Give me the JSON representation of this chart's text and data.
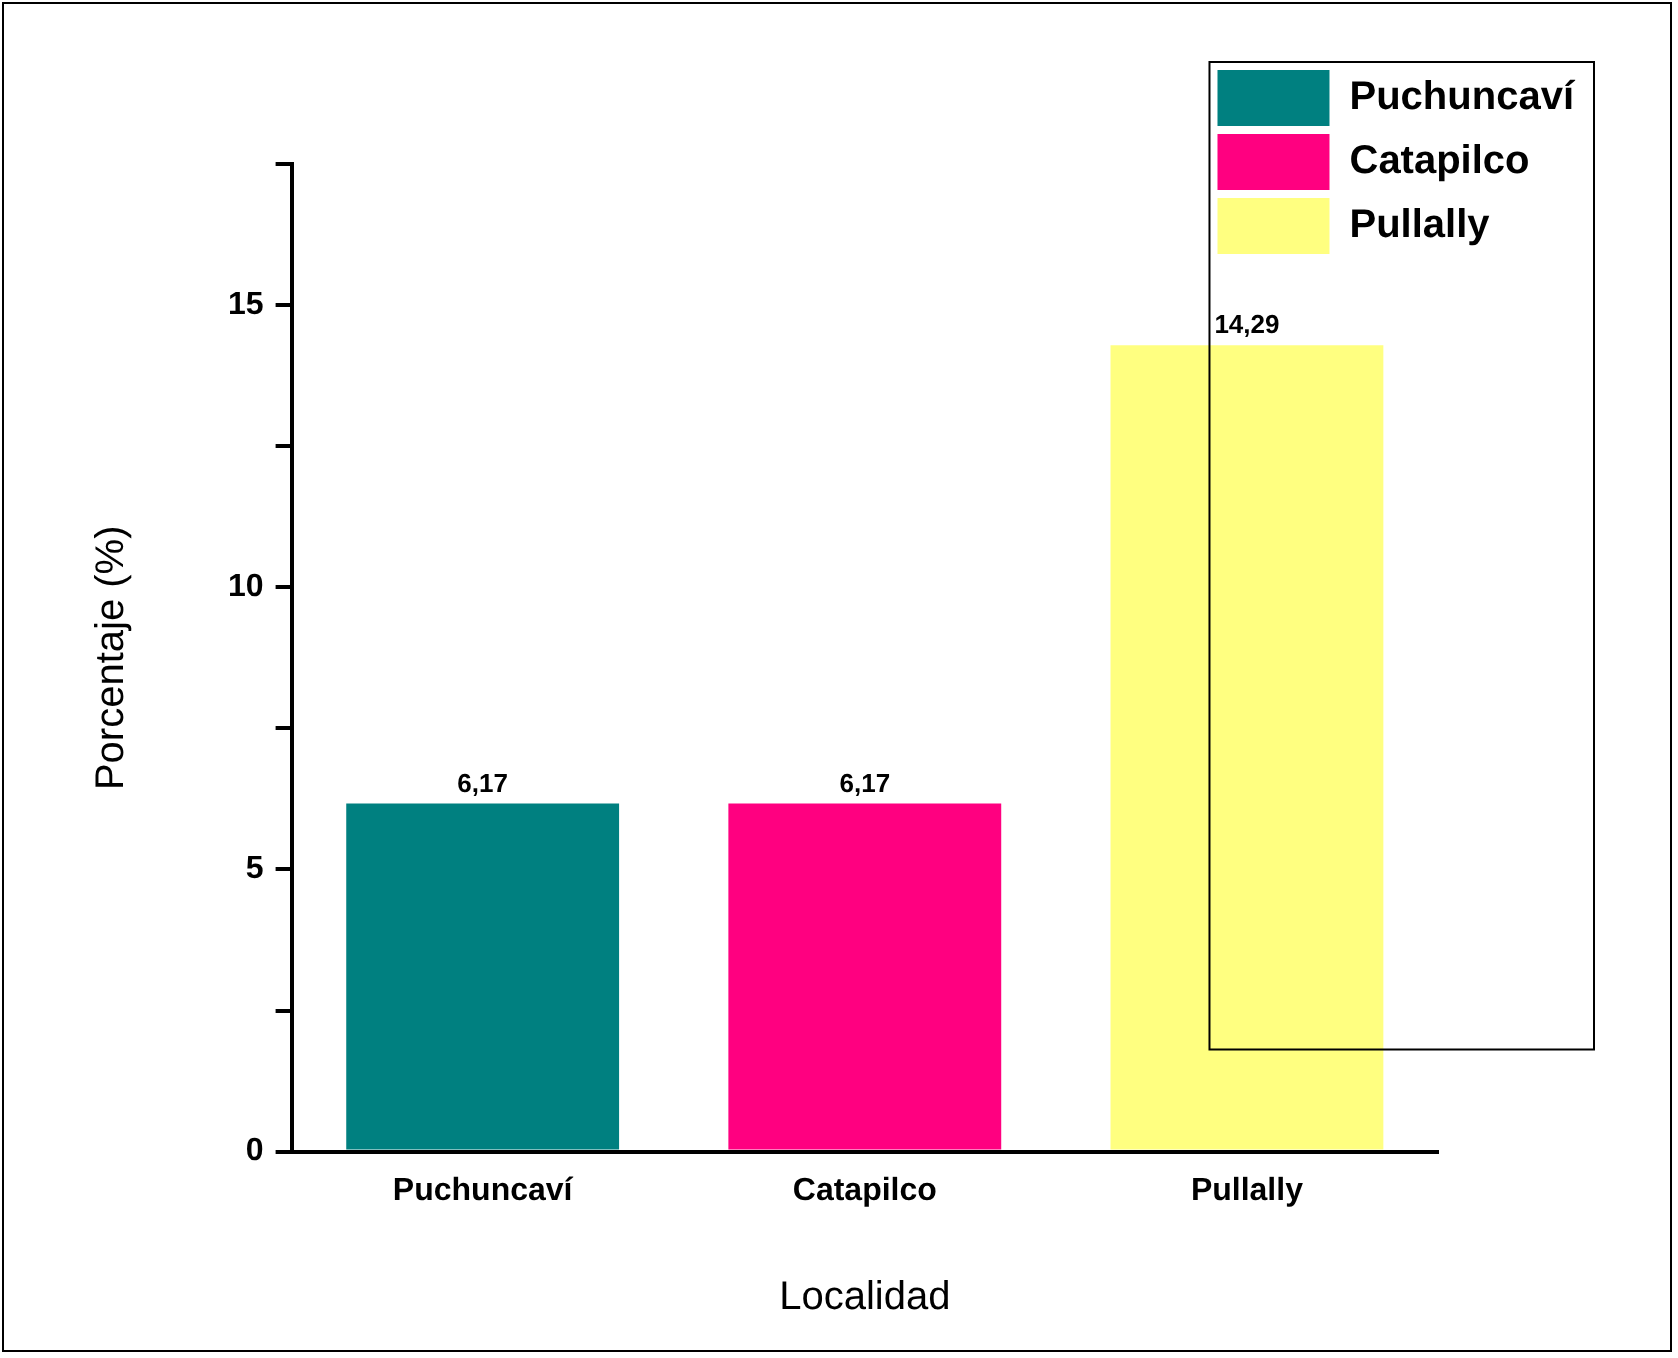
{
  "chart_data": {
    "type": "bar",
    "xlabel": "Localidad",
    "ylabel": "Porcentaje (%)",
    "categories": [
      "Puchuncaví",
      "Catapilco",
      "Pullally"
    ],
    "series": [
      {
        "name": "Puchuncaví",
        "color": "#008080",
        "values": [
          6.17,
          null,
          null
        ],
        "value_labels": [
          "6,17",
          null,
          null
        ]
      },
      {
        "name": "Catapilco",
        "color": "#ff0080",
        "values": [
          null,
          6.17,
          null
        ],
        "value_labels": [
          null,
          "6,17",
          null
        ]
      },
      {
        "name": "Pullally",
        "color": "#ffff80",
        "values": [
          null,
          null,
          14.29
        ],
        "value_labels": [
          null,
          null,
          "14,29"
        ]
      }
    ],
    "ylim": [
      0,
      17.5
    ],
    "yticks": [
      0,
      {
        "value": 2.5,
        "label": null
      },
      5,
      {
        "value": 7.5,
        "label": null
      },
      10,
      {
        "value": 12.5,
        "label": null
      },
      15,
      {
        "value": 17.5,
        "label": null
      }
    ],
    "legend": "top right"
  }
}
